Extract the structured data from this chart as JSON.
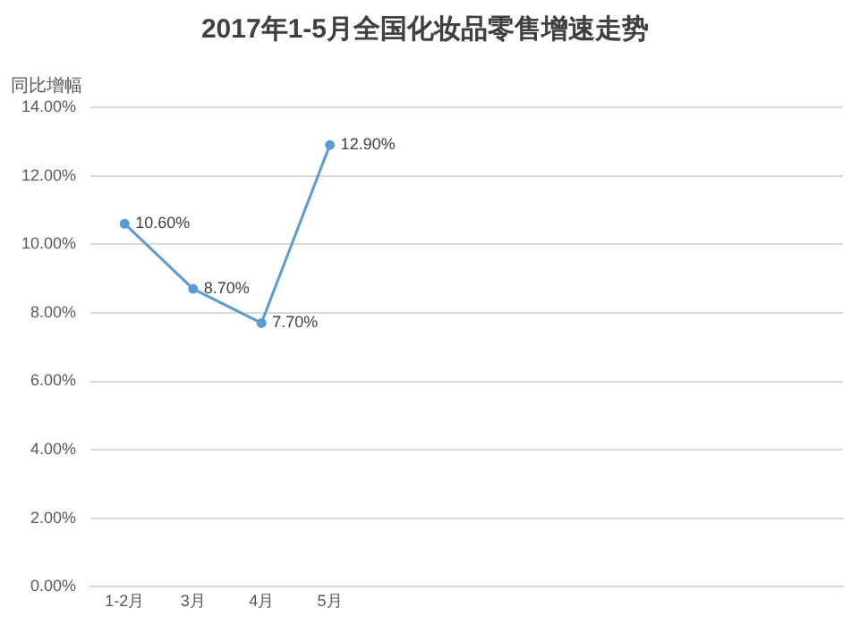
{
  "chart_data": {
    "type": "line",
    "title": "2017年1-5月全国化妆品零售增速走势",
    "ylabel": "同比增幅",
    "categories": [
      "1-2月",
      "3月",
      "4月",
      "5月",
      null,
      null,
      null,
      null,
      null,
      null,
      null
    ],
    "series": [
      {
        "color": "#5b9bd5",
        "values": [
          10.6,
          8.7,
          7.7,
          12.9,
          null,
          null,
          null,
          null,
          null,
          null,
          null
        ],
        "value_labels": [
          "10.60%",
          "8.70%",
          "7.70%",
          "12.90%",
          null,
          null,
          null,
          null,
          null,
          null,
          null
        ]
      }
    ],
    "ylim": [
      0,
      14
    ],
    "yticks": [
      {
        "value": 0,
        "label": "0.00%"
      },
      {
        "value": 2,
        "label": "2.00%"
      },
      {
        "value": 4,
        "label": "4.00%"
      },
      {
        "value": 6,
        "label": "6.00%"
      },
      {
        "value": 8,
        "label": "8.00%"
      },
      {
        "value": 10,
        "label": "10.00%"
      },
      {
        "value": 12,
        "label": "12.00%"
      },
      {
        "value": 14,
        "label": "14.00%"
      }
    ],
    "grid": "y",
    "legend": false,
    "marker": "circle",
    "line_style": "solid"
  }
}
